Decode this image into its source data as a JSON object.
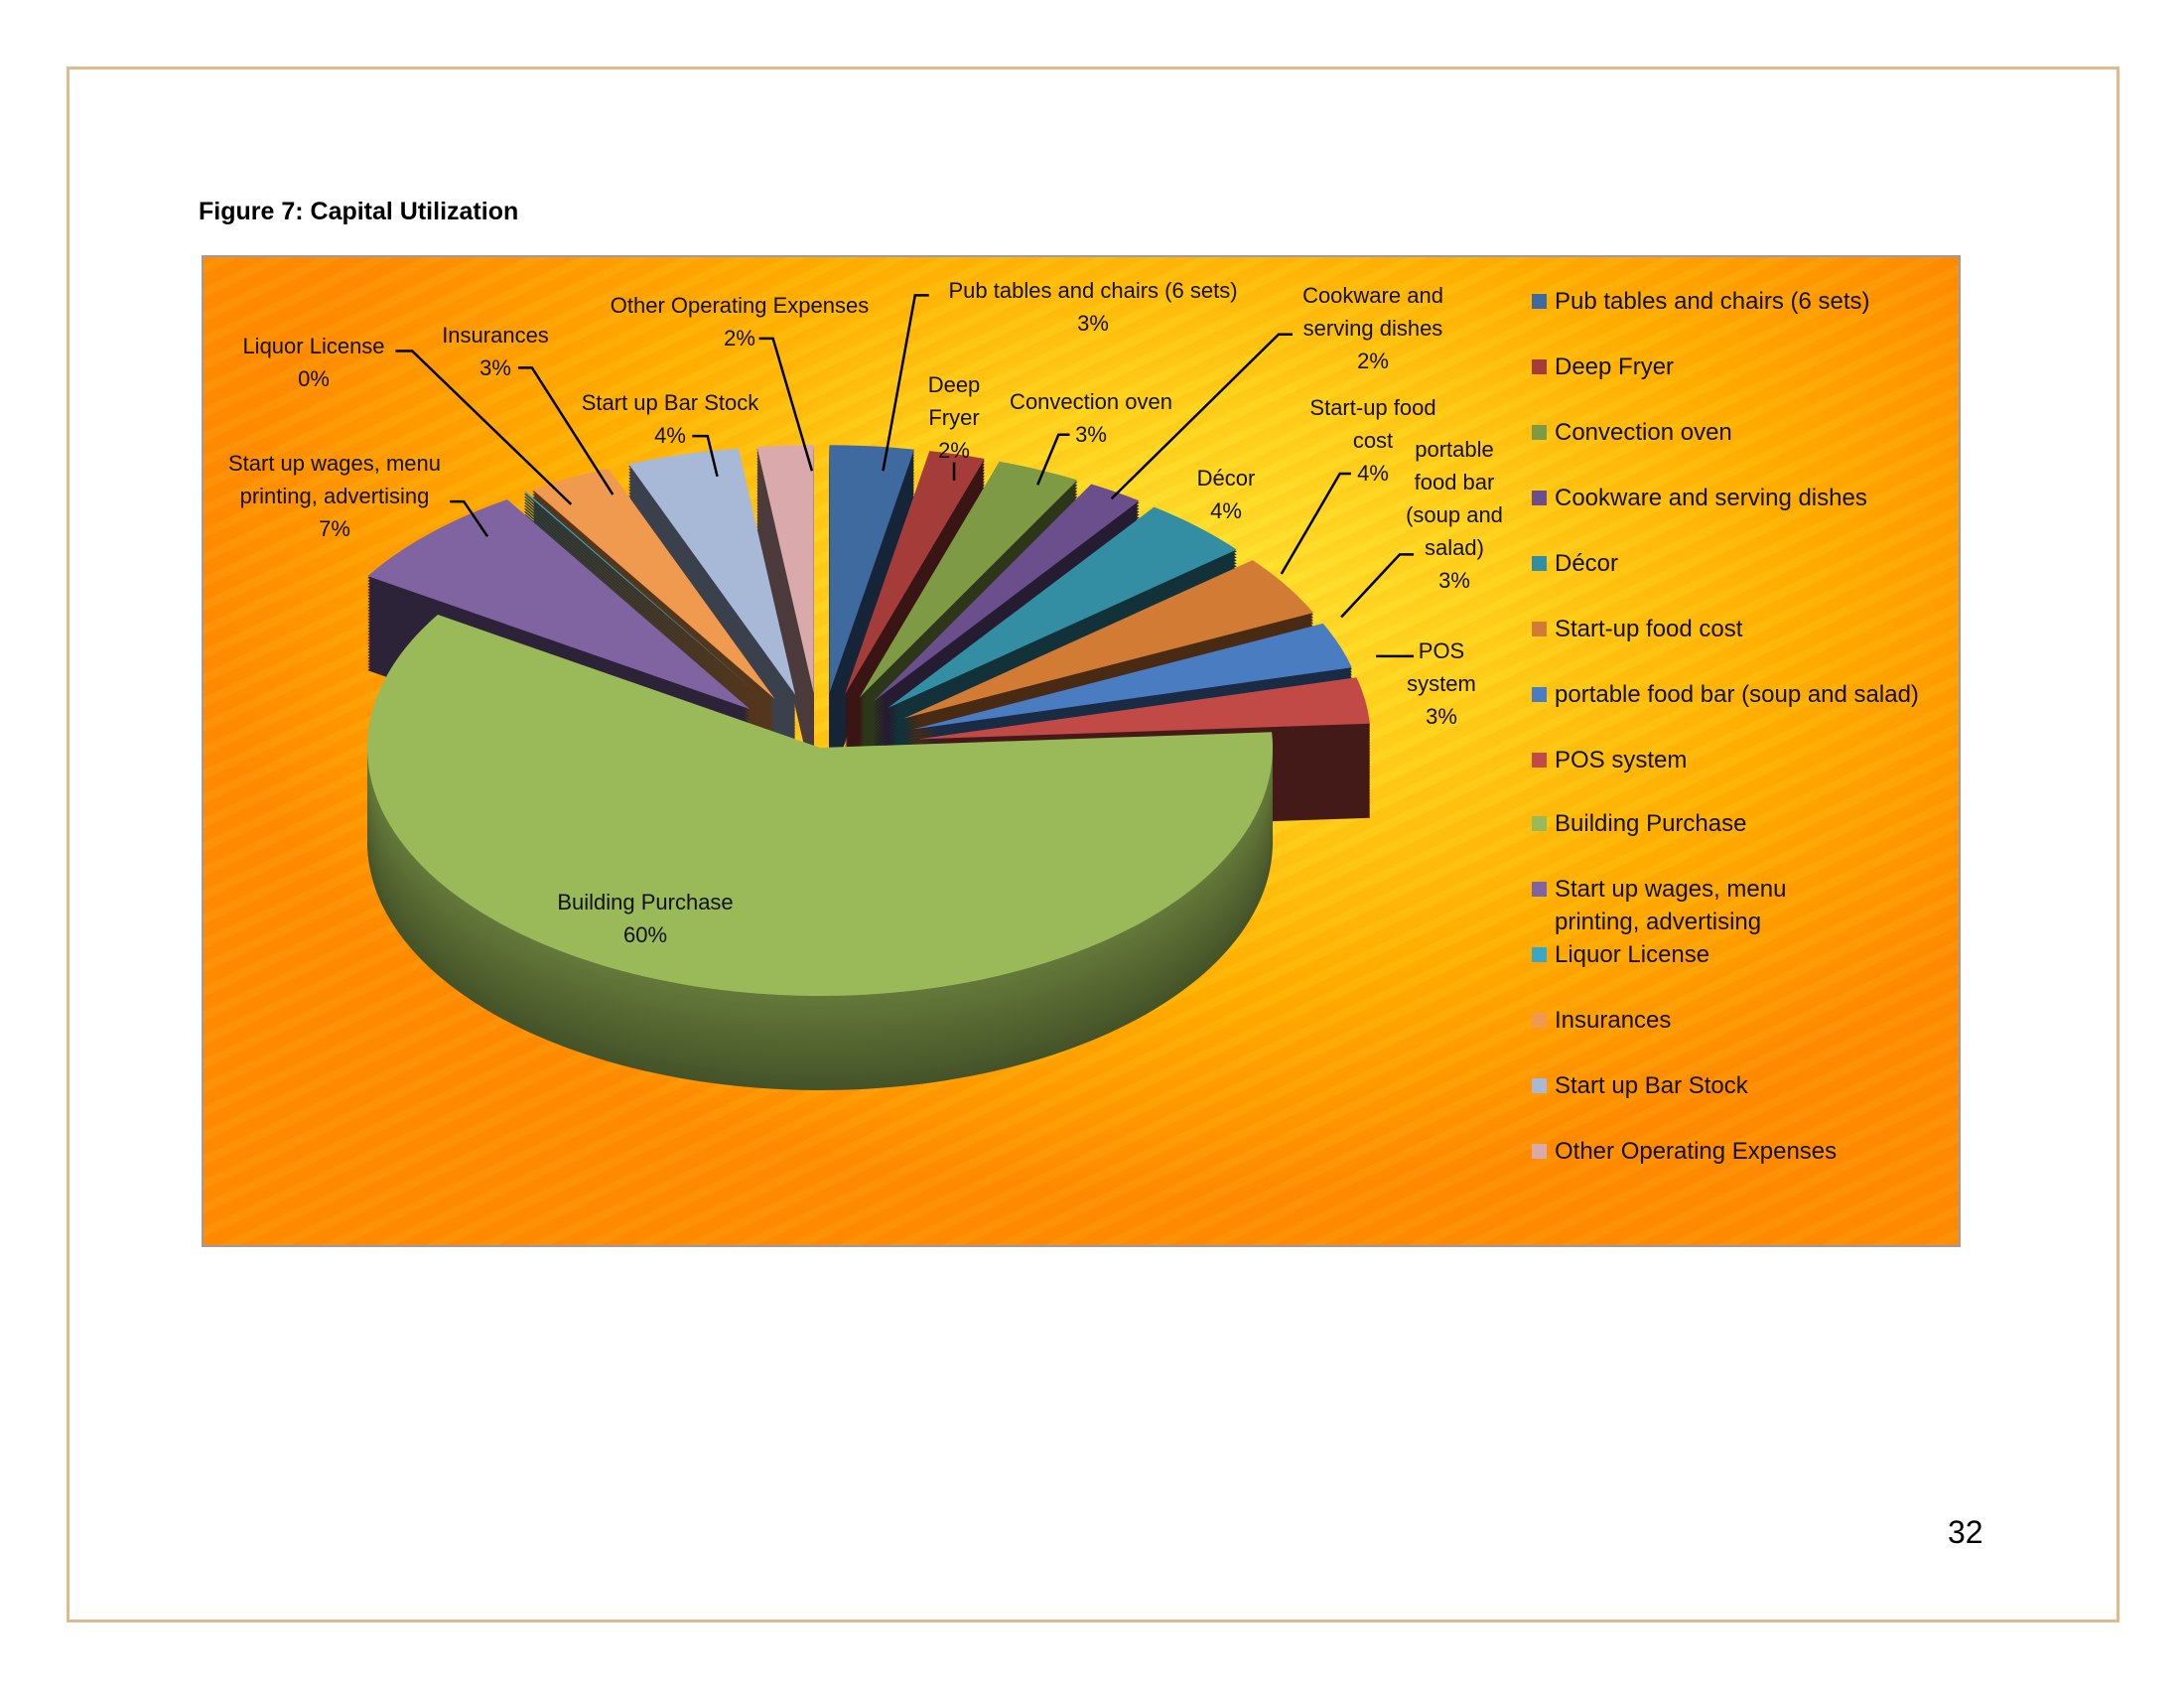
{
  "page": {
    "figure_title": "Figure 7: Capital Utilization",
    "page_number": "32"
  },
  "chart_data": {
    "type": "pie",
    "style": "3d-exploded",
    "title": "",
    "legend_position": "right",
    "slices": [
      {
        "label": "Pub tables and chairs (6 sets)",
        "value": 3,
        "pct": "3%",
        "color": "#3e6aa0"
      },
      {
        "label": "Deep Fryer",
        "value": 2,
        "pct": "2%",
        "color": "#a43d3a"
      },
      {
        "label": "Convection oven",
        "value": 3,
        "pct": "3%",
        "color": "#7f9a45"
      },
      {
        "label": "Cookware and serving dishes",
        "value": 2,
        "pct": "2%",
        "color": "#6a4f8c"
      },
      {
        "label": "Décor",
        "value": 4,
        "pct": "4%",
        "color": "#338da3"
      },
      {
        "label": "Start-up food cost",
        "value": 4,
        "pct": "4%",
        "color": "#d17b35"
      },
      {
        "label": "portable food bar (soup and salad)",
        "value": 3,
        "pct": "3%",
        "color": "#4a7cc2"
      },
      {
        "label": "POS system",
        "value": 3,
        "pct": "3%",
        "color": "#c14a47"
      },
      {
        "label": "Building Purchase",
        "value": 60,
        "pct": "60%",
        "color": "#9aba59"
      },
      {
        "label": "Start up wages, menu printing, advertising",
        "value": 7,
        "pct": "7%",
        "color": "#8064a2"
      },
      {
        "label": "Liquor License",
        "value": 0,
        "pct": "0%",
        "color": "#3ba7c4"
      },
      {
        "label": "Insurances",
        "value": 3,
        "pct": "3%",
        "color": "#f09a4f"
      },
      {
        "label": "Start up Bar Stock",
        "value": 4,
        "pct": "4%",
        "color": "#a8b9d8"
      },
      {
        "label": "Other Operating Expenses",
        "value": 2,
        "pct": "2%",
        "color": "#d9a9ab"
      }
    ]
  }
}
